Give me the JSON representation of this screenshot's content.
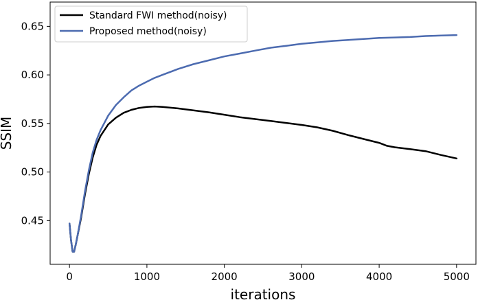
{
  "chart_data": {
    "type": "line",
    "title": "",
    "xlabel": "iterations",
    "ylabel": "SSIM",
    "xlim": [
      -250,
      5250
    ],
    "ylim": [
      0.405,
      0.675
    ],
    "xticks": [
      0,
      1000,
      2000,
      3000,
      4000,
      5000
    ],
    "xtick_labels": [
      "0",
      "1000",
      "2000",
      "3000",
      "4000",
      "5000"
    ],
    "yticks": [
      0.45,
      0.5,
      0.55,
      0.6,
      0.65
    ],
    "ytick_labels": [
      "0.45",
      "0.50",
      "0.55",
      "0.60",
      "0.65"
    ],
    "grid": false,
    "legend_position": "top-left",
    "series": [
      {
        "name": "Standard FWI method(noisy)",
        "color": "#000000",
        "x": [
          0,
          20,
          40,
          60,
          80,
          100,
          150,
          200,
          250,
          300,
          350,
          400,
          500,
          600,
          700,
          800,
          900,
          1000,
          1100,
          1200,
          1400,
          1600,
          1800,
          2000,
          2200,
          2400,
          2600,
          2800,
          3000,
          3200,
          3400,
          3600,
          3800,
          4000,
          4100,
          4200,
          4400,
          4600,
          4800,
          5000
        ],
        "y": [
          0.447,
          0.43,
          0.418,
          0.418,
          0.425,
          0.433,
          0.453,
          0.477,
          0.498,
          0.515,
          0.528,
          0.537,
          0.549,
          0.556,
          0.561,
          0.564,
          0.566,
          0.567,
          0.5675,
          0.567,
          0.5655,
          0.5635,
          0.5615,
          0.559,
          0.5565,
          0.5545,
          0.5525,
          0.5505,
          0.5485,
          0.546,
          0.5425,
          0.538,
          0.534,
          0.53,
          0.527,
          0.5255,
          0.5235,
          0.5215,
          0.5175,
          0.514
        ]
      },
      {
        "name": "Proposed method(noisy)",
        "color": "#4c6bb0",
        "x": [
          0,
          20,
          40,
          60,
          80,
          100,
          150,
          200,
          250,
          300,
          350,
          400,
          500,
          600,
          700,
          800,
          900,
          1000,
          1100,
          1200,
          1400,
          1600,
          1800,
          2000,
          2200,
          2400,
          2600,
          2800,
          3000,
          3200,
          3400,
          3600,
          3800,
          4000,
          4200,
          4400,
          4600,
          4800,
          5000
        ],
        "y": [
          0.447,
          0.43,
          0.418,
          0.418,
          0.425,
          0.433,
          0.455,
          0.48,
          0.502,
          0.52,
          0.533,
          0.543,
          0.558,
          0.569,
          0.577,
          0.584,
          0.589,
          0.593,
          0.597,
          0.6,
          0.606,
          0.611,
          0.615,
          0.619,
          0.622,
          0.625,
          0.628,
          0.63,
          0.632,
          0.6335,
          0.635,
          0.636,
          0.637,
          0.638,
          0.6385,
          0.639,
          0.64,
          0.6405,
          0.641
        ]
      }
    ]
  }
}
